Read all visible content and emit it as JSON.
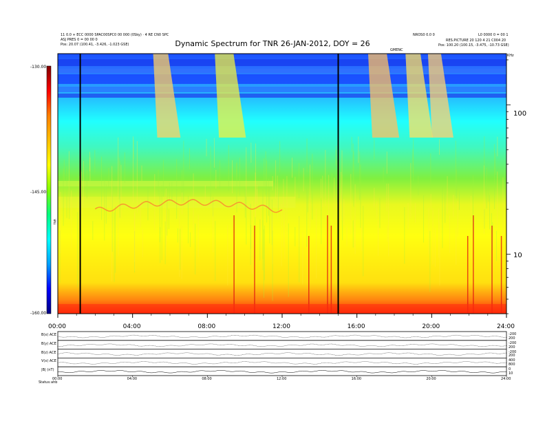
{
  "header": {
    "left_line1": "11 0.0 + ECC 0000 SPAC00SPC0 00 000 (0Sky) · 4 RE CN0 SPC",
    "left_line2": "ASJ PRES 0 = 00 00 0",
    "left_line3": "Pos:    20.07 (100.41, -3.426, -1.023 GSE)",
    "center_right_top": "NROS0 0.0 0",
    "right_top": "L0 0000 0 = 00 1",
    "right_line2": "RES.PICTURE  20 120 4 21  C004 20",
    "right_line3": "Pos:   100.20 (100.15, -3.475, -10.73 GSE)",
    "center_small": "GMENC",
    "corner_tag": "KHz"
  },
  "chart_data": {
    "type": "heatmap",
    "title": "Dynamic Spectrum for TNR 26-JAN-2012, DOY = 26",
    "xlabel": "",
    "ylabel": "",
    "x_ticks": [
      "00:00",
      "04:00",
      "08:00",
      "12:00",
      "16:00",
      "20:00",
      "24:00"
    ],
    "xlim": [
      0,
      24
    ],
    "y_scale": "log",
    "ylabel_right": "KHz",
    "y_ticks_right": [
      "100",
      "10"
    ],
    "ylim": [
      4,
      220
    ],
    "colorbar": {
      "label": "TNR",
      "ticks": [
        "-130.00",
        "-145.00",
        "-160.00"
      ],
      "range": [
        -160,
        -130
      ],
      "colors": [
        "#000080",
        "#0000ff",
        "#00a0ff",
        "#00ffff",
        "#00ff80",
        "#80ff00",
        "#ffff00",
        "#ffc000",
        "#ff8000",
        "#ff0000",
        "#800000"
      ]
    },
    "data_gaps_hours": [
      1.2,
      15.0
    ],
    "freq_bands": [
      {
        "name": "top",
        "color": "#2060ff"
      },
      {
        "name": "upper",
        "color": "#20d0ff"
      },
      {
        "name": "middle",
        "color": "#60f060"
      },
      {
        "name": "lower",
        "color": "#f8f820"
      },
      {
        "name": "bottom",
        "color": "#ff3010"
      }
    ],
    "bursts": [
      {
        "start": 5.1,
        "end": 5.9,
        "color": "#ffd060"
      },
      {
        "start": 8.4,
        "end": 9.4,
        "color": "#f0f040"
      },
      {
        "start": 16.6,
        "end": 17.6,
        "color": "#ffc060"
      },
      {
        "start": 18.6,
        "end": 19.4,
        "color": "#ffe060"
      },
      {
        "start": 19.8,
        "end": 20.5,
        "color": "#ffd070"
      }
    ],
    "spikes": [
      9.4,
      10.5,
      13.4,
      14.4,
      14.6,
      21.9,
      22.2,
      23.2,
      23.7
    ]
  },
  "panels": [
    {
      "label": "B(x) ACE",
      "right_ticks": [
        "-200",
        "200"
      ]
    },
    {
      "label": "B(y) ACE",
      "right_ticks": [
        "-200",
        "200"
      ]
    },
    {
      "label": "B(z) ACE",
      "right_ticks": [
        "-200",
        "200"
      ]
    },
    {
      "label": "V(x) ACE",
      "right_ticks": [
        "400",
        "800"
      ]
    },
    {
      "label": "|B| (nT)",
      "right_ticks": [
        "0",
        "10"
      ]
    }
  ],
  "bottom_x_ticks": [
    "00:00",
    "04:00",
    "08:00",
    "12:00",
    "16:00",
    "20:00",
    "24:00"
  ],
  "footer": {
    "status": "Status:",
    "value": "ahb"
  }
}
